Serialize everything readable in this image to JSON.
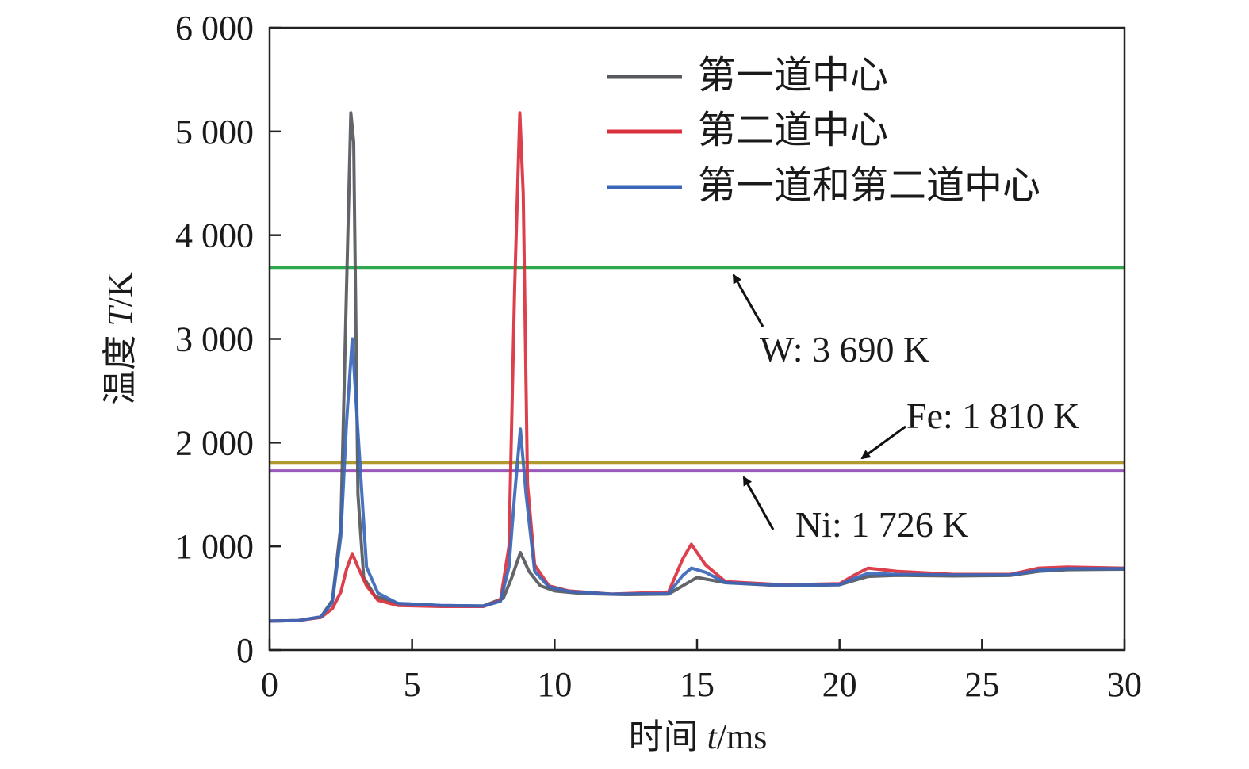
{
  "chart_data": {
    "type": "line",
    "title": "",
    "xlabel": {
      "prefix": "时间 ",
      "var": "t",
      "unit": "/ms"
    },
    "ylabel": {
      "prefix": "温度 ",
      "var": "T",
      "unit": "/K"
    },
    "xlim": [
      0,
      30
    ],
    "ylim": [
      0,
      6000
    ],
    "xticks": [
      0,
      5,
      10,
      15,
      20,
      25,
      30
    ],
    "xtick_labels": [
      "0",
      "5",
      "10",
      "15",
      "20",
      "25",
      "30"
    ],
    "yticks": [
      0,
      1000,
      2000,
      3000,
      4000,
      5000,
      6000
    ],
    "ytick_labels": [
      "0",
      "1 000",
      "2 000",
      "3 000",
      "4 000",
      "5 000",
      "6 000"
    ],
    "legend_position": "top-right",
    "series": [
      {
        "name": "第一道中心",
        "color": "#55585c",
        "x": [
          0,
          1,
          1.8,
          2.2,
          2.5,
          2.7,
          2.85,
          2.95,
          3.1,
          3.3,
          3.7,
          4.5,
          6,
          7.5,
          8.2,
          8.5,
          8.8,
          9.1,
          9.5,
          10,
          11,
          12.5,
          14,
          14.5,
          15,
          16,
          18,
          20,
          20.5,
          21,
          22,
          24,
          26,
          27,
          28,
          30
        ],
        "y": [
          280,
          285,
          320,
          480,
          1200,
          3500,
          5180,
          4900,
          1500,
          700,
          520,
          450,
          430,
          425,
          500,
          700,
          940,
          760,
          620,
          570,
          545,
          535,
          540,
          620,
          700,
          650,
          620,
          630,
          670,
          710,
          720,
          715,
          720,
          760,
          775,
          780
        ]
      },
      {
        "name": "第二道中心",
        "color": "#d9303d",
        "x": [
          0,
          1,
          1.8,
          2.2,
          2.5,
          2.7,
          2.9,
          3.1,
          3.4,
          3.8,
          4.5,
          6,
          7.5,
          8.1,
          8.4,
          8.6,
          8.78,
          8.9,
          9.05,
          9.3,
          9.8,
          10.5,
          12,
          14,
          14.5,
          14.8,
          15.3,
          16,
          18,
          20,
          20.5,
          21,
          22,
          24,
          26,
          27,
          28,
          30
        ],
        "y": [
          280,
          285,
          315,
          400,
          560,
          780,
          930,
          800,
          620,
          480,
          430,
          420,
          420,
          480,
          1000,
          3500,
          5180,
          4400,
          1600,
          820,
          620,
          570,
          540,
          560,
          880,
          1020,
          820,
          660,
          630,
          640,
          720,
          790,
          760,
          730,
          730,
          790,
          800,
          790
        ]
      },
      {
        "name": "第一道和第二道中心",
        "color": "#3a67b8",
        "x": [
          0,
          1,
          1.8,
          2.2,
          2.5,
          2.7,
          2.9,
          3.1,
          3.4,
          3.8,
          4.5,
          6,
          7.5,
          8.1,
          8.4,
          8.6,
          8.8,
          9.0,
          9.3,
          9.8,
          10.5,
          12,
          14,
          14.5,
          14.8,
          15.3,
          16,
          18,
          20,
          20.5,
          21,
          22,
          24,
          26,
          27,
          28,
          30
        ],
        "y": [
          280,
          285,
          320,
          460,
          1100,
          2200,
          3000,
          2100,
          800,
          550,
          450,
          430,
          425,
          470,
          800,
          1500,
          2130,
          1500,
          760,
          610,
          565,
          540,
          545,
          720,
          790,
          750,
          650,
          625,
          630,
          690,
          740,
          730,
          725,
          725,
          770,
          785,
          785
        ]
      }
    ],
    "reference_lines": [
      {
        "element": "W",
        "value": 3690,
        "label": "W: 3 690 K",
        "color": "#2fa84f"
      },
      {
        "element": "Fe",
        "value": 1810,
        "label": "Fe: 1 810 K",
        "color": "#b09a2e"
      },
      {
        "element": "Ni",
        "value": 1726,
        "label": "Ni: 1 726 K",
        "color": "#9a58b8"
      }
    ]
  }
}
